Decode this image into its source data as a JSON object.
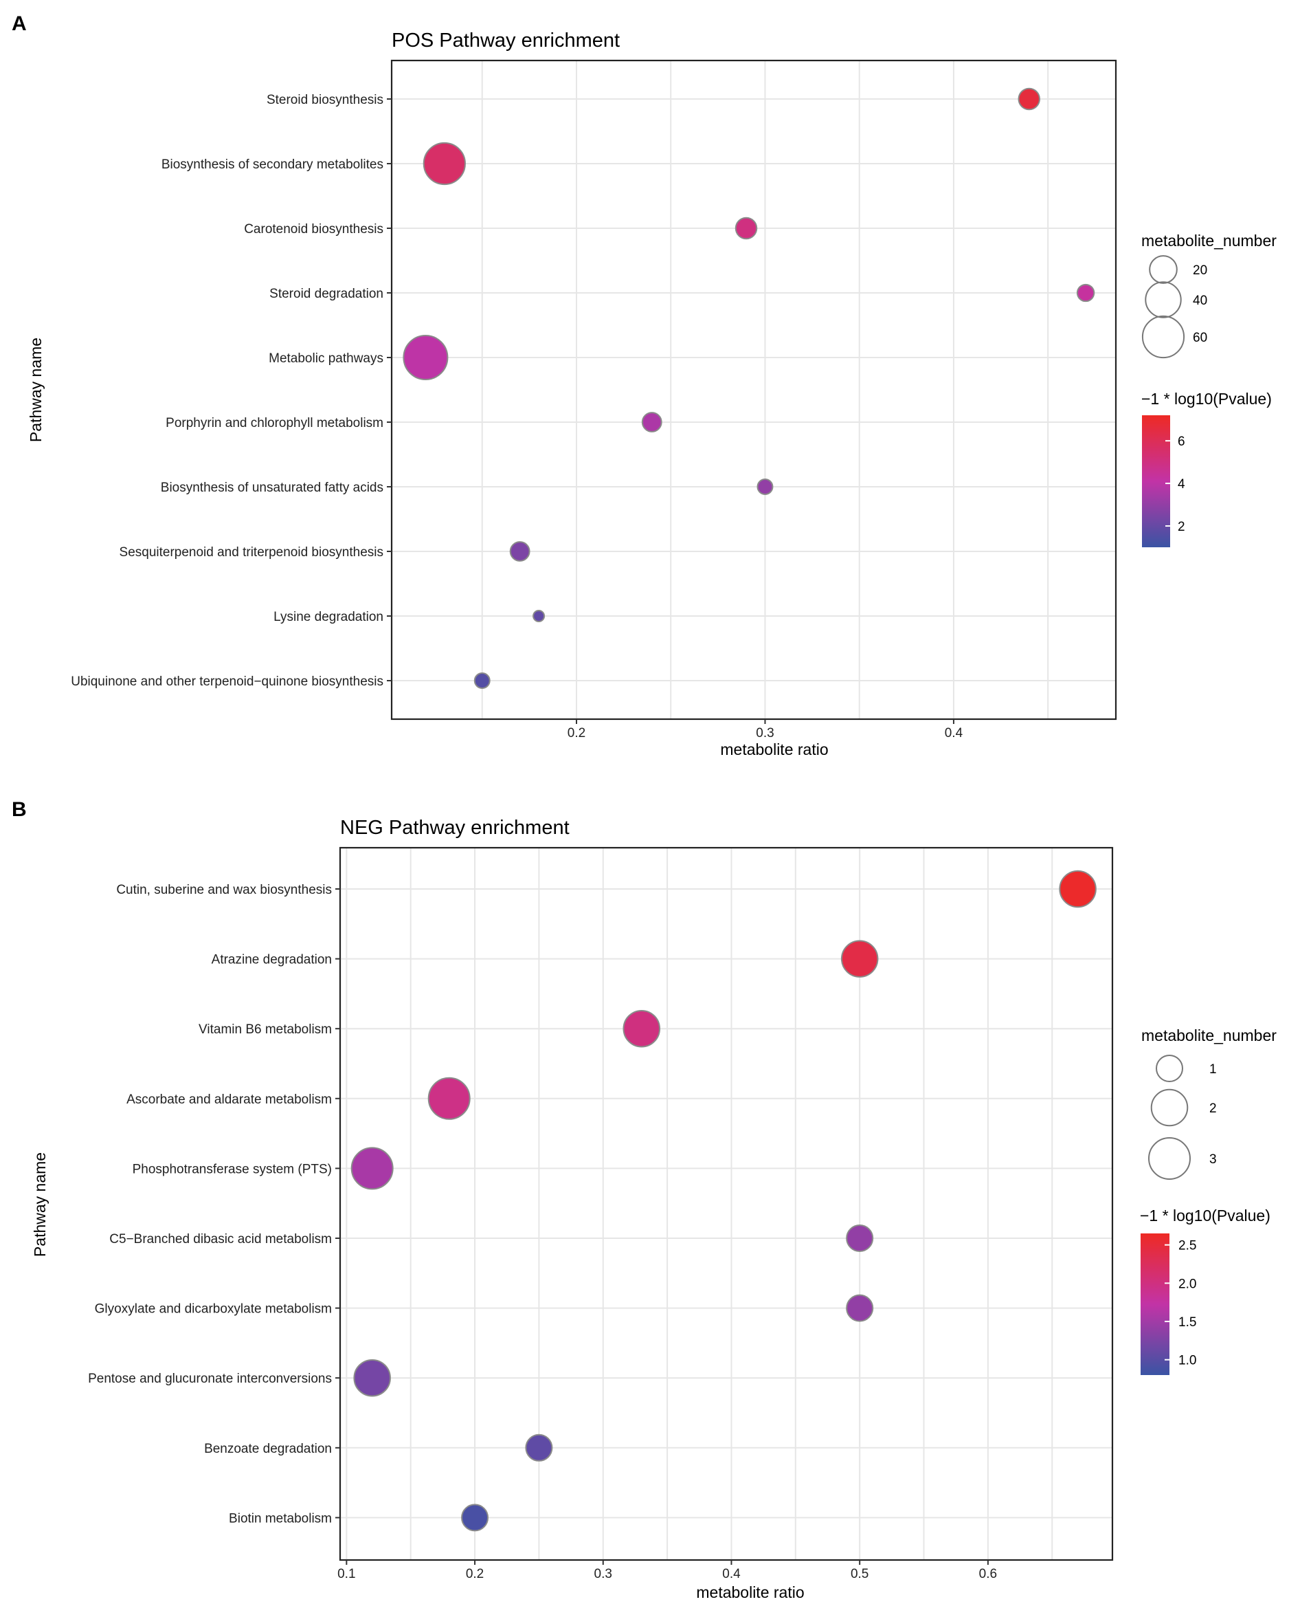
{
  "chart_data": [
    {
      "panel": "A",
      "type": "scatter",
      "title": "POS Pathway enrichment",
      "xlabel": "metabolite ratio",
      "ylabel": "Pathway name",
      "xlim": [
        0.102,
        0.486
      ],
      "xticks": [
        0.2,
        0.3,
        0.4
      ],
      "xtick_labels": [
        "0.2",
        "0.3",
        "0.4"
      ],
      "grid": true,
      "categories": [
        "Steroid biosynthesis",
        "Biosynthesis of secondary metabolites",
        "Carotenoid biosynthesis",
        "Steroid degradation",
        "Metabolic pathways",
        "Porphyrin and chlorophyll metabolism",
        "Biosynthesis of unsaturated fatty acids",
        "Sesquiterpenoid and triterpenoid biosynthesis",
        "Lysine degradation",
        "Ubiquinone and other terpenoid−quinone biosynthesis"
      ],
      "points": [
        {
          "pathway": "Steroid biosynthesis",
          "ratio": 0.44,
          "metabolite_number": 10,
          "neg_log10_p": 6.6
        },
        {
          "pathway": "Biosynthesis of secondary metabolites",
          "ratio": 0.13,
          "metabolite_number": 60,
          "neg_log10_p": 5.6
        },
        {
          "pathway": "Carotenoid biosynthesis",
          "ratio": 0.29,
          "metabolite_number": 10,
          "neg_log10_p": 5.0
        },
        {
          "pathway": "Steroid degradation",
          "ratio": 0.47,
          "metabolite_number": 6,
          "neg_log10_p": 4.3
        },
        {
          "pathway": "Metabolic pathways",
          "ratio": 0.12,
          "metabolite_number": 70,
          "neg_log10_p": 4.0
        },
        {
          "pathway": "Porphyrin and chlorophyll metabolism",
          "ratio": 0.24,
          "metabolite_number": 8,
          "neg_log10_p": 3.6
        },
        {
          "pathway": "Biosynthesis of unsaturated fatty acids",
          "ratio": 0.3,
          "metabolite_number": 5,
          "neg_log10_p": 3.0
        },
        {
          "pathway": "Sesquiterpenoid and triterpenoid biosynthesis",
          "ratio": 0.17,
          "metabolite_number": 8,
          "neg_log10_p": 2.5
        },
        {
          "pathway": "Lysine degradation",
          "ratio": 0.18,
          "metabolite_number": 4,
          "neg_log10_p": 1.9
        },
        {
          "pathway": "Ubiquinone and other terpenoid−quinone biosynthesis",
          "ratio": 0.15,
          "metabolite_number": 5,
          "neg_log10_p": 1.6
        }
      ],
      "size_legend": {
        "title": "metabolite_number",
        "values": [
          20,
          40,
          60
        ],
        "labels": [
          "20",
          "40",
          "60"
        ]
      },
      "color_legend": {
        "title": "−1 * log10(Pvalue)",
        "range": [
          1.0,
          7.2
        ],
        "ticks": [
          6,
          4,
          2
        ],
        "tick_labels": [
          "6",
          "4",
          "2"
        ]
      }
    },
    {
      "panel": "B",
      "type": "scatter",
      "title": "NEG Pathway enrichment",
      "xlabel": "metabolite ratio",
      "ylabel": "Pathway name",
      "xlim": [
        0.095,
        0.697
      ],
      "xticks": [
        0.1,
        0.2,
        0.3,
        0.4,
        0.5,
        0.6
      ],
      "xtick_labels": [
        "0.1",
        "0.2",
        "0.3",
        "0.4",
        "0.5",
        "0.6"
      ],
      "grid": true,
      "categories": [
        "Cutin, suberine and wax biosynthesis",
        "Atrazine degradation",
        "Vitamin B6 metabolism",
        "Ascorbate and aldarate metabolism",
        "Phosphotransferase system (PTS)",
        "C5−Branched dibasic acid metabolism",
        "Glyoxylate and dicarboxylate metabolism",
        "Pentose and glucuronate interconversions",
        "Benzoate degradation",
        "Biotin metabolism"
      ],
      "points": [
        {
          "pathway": "Cutin, suberine and wax biosynthesis",
          "ratio": 0.67,
          "metabolite_number": 2,
          "neg_log10_p": 2.6
        },
        {
          "pathway": "Atrazine degradation",
          "ratio": 0.5,
          "metabolite_number": 2,
          "neg_log10_p": 2.4
        },
        {
          "pathway": "Vitamin B6 metabolism",
          "ratio": 0.33,
          "metabolite_number": 2,
          "neg_log10_p": 2.0
        },
        {
          "pathway": "Ascorbate and aldarate metabolism",
          "ratio": 0.18,
          "metabolite_number": 3,
          "neg_log10_p": 1.95
        },
        {
          "pathway": "Phosphotransferase system (PTS)",
          "ratio": 0.12,
          "metabolite_number": 3,
          "neg_log10_p": 1.55
        },
        {
          "pathway": "C5−Branched dibasic acid metabolism",
          "ratio": 0.5,
          "metabolite_number": 1,
          "neg_log10_p": 1.4
        },
        {
          "pathway": "Glyoxylate and dicarboxylate metabolism",
          "ratio": 0.5,
          "metabolite_number": 1,
          "neg_log10_p": 1.4
        },
        {
          "pathway": "Pentose and glucuronate interconversions",
          "ratio": 0.12,
          "metabolite_number": 2,
          "neg_log10_p": 1.2
        },
        {
          "pathway": "Benzoate degradation",
          "ratio": 0.25,
          "metabolite_number": 1,
          "neg_log10_p": 1.05
        },
        {
          "pathway": "Biotin metabolism",
          "ratio": 0.2,
          "metabolite_number": 1,
          "neg_log10_p": 0.9
        }
      ],
      "size_legend": {
        "title": "metabolite_number",
        "values": [
          1,
          2,
          3
        ],
        "labels": [
          "1",
          "2",
          "3"
        ]
      },
      "color_legend": {
        "title": "−1 * log10(Pvalue)",
        "range": [
          0.8,
          2.65
        ],
        "ticks": [
          2.5,
          2.0,
          1.5,
          1.0
        ],
        "tick_labels": [
          "2.5",
          "2.0",
          "1.5",
          "1.0"
        ]
      }
    }
  ],
  "colors": {
    "low": "#3a54a4",
    "mid": "#c233a6",
    "high": "#ee2a24",
    "grid": "#e6e6e6",
    "panel_border": "#222222",
    "point_stroke": "#8a8a8a"
  }
}
